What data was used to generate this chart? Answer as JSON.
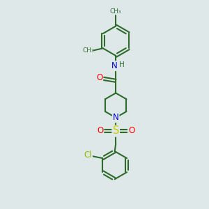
{
  "bg_color": "#dfe8e8",
  "bond_color": "#2d6b2d",
  "bond_width": 1.5,
  "atom_colors": {
    "O": "#ff0000",
    "N": "#0000cd",
    "S": "#cccc00",
    "Cl": "#88bb00",
    "C": "#2d6b2d",
    "H": "#2d6b2d"
  },
  "font_size": 8.5
}
